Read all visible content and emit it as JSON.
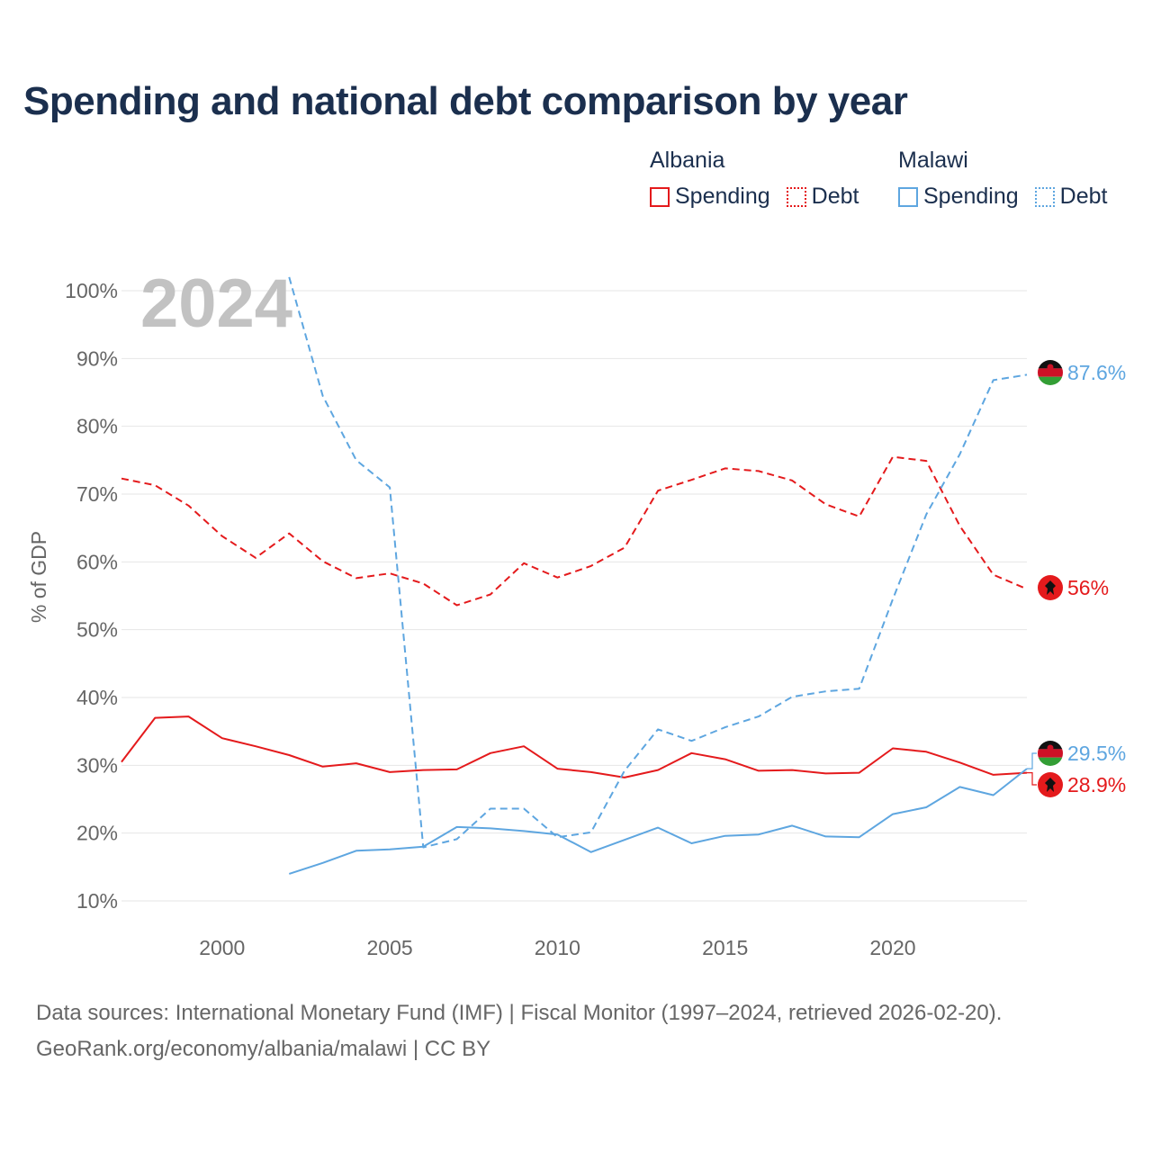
{
  "title": "Spending and national debt comparison by year",
  "legend": {
    "albania": {
      "name": "Albania",
      "spending": "Spending",
      "debt": "Debt"
    },
    "malawi": {
      "name": "Malawi",
      "spending": "Spending",
      "debt": "Debt"
    }
  },
  "colors": {
    "albania": "#e41a1c",
    "malawi": "#5ea6e0",
    "grid": "#e6e6e6",
    "axis_text": "#666666",
    "title": "#1b2f4e",
    "watermark": "#c2c2c2"
  },
  "source": {
    "line1": "Data sources: International Monetary Fund (IMF) | Fiscal Monitor (1997–2024, retrieved 2026-02-20).",
    "line2": "GeoRank.org/economy/albania/malawi | CC BY"
  },
  "chart_data": {
    "type": "line",
    "title": "Spending and national debt comparison by year",
    "watermark_year": "2024",
    "ylabel": "% of GDP",
    "xlabel": "",
    "xlim": [
      1997,
      2024
    ],
    "ylim": [
      10,
      100
    ],
    "yticks": [
      10,
      20,
      30,
      40,
      50,
      60,
      70,
      80,
      90,
      100
    ],
    "ytick_labels": [
      "10%",
      "20%",
      "30%",
      "40%",
      "50%",
      "60%",
      "70%",
      "80%",
      "90%",
      "100%"
    ],
    "xticks": [
      2000,
      2005,
      2010,
      2015,
      2020
    ],
    "xtick_labels": [
      "2000",
      "2005",
      "2010",
      "2015",
      "2020"
    ],
    "series": [
      {
        "name": "Albania Spending",
        "country": "albania",
        "style": "solid",
        "x": [
          1997,
          1998,
          1999,
          2000,
          2001,
          2002,
          2003,
          2004,
          2005,
          2006,
          2007,
          2008,
          2009,
          2010,
          2011,
          2012,
          2013,
          2014,
          2015,
          2016,
          2017,
          2018,
          2019,
          2020,
          2021,
          2022,
          2023,
          2024
        ],
        "values": [
          30.5,
          37,
          37.2,
          34,
          32.8,
          31.5,
          29.8,
          30.3,
          29,
          29.3,
          29.4,
          31.8,
          32.8,
          29.5,
          29,
          28.2,
          29.3,
          31.8,
          30.9,
          29.2,
          29.3,
          28.8,
          28.9,
          32.5,
          32,
          30.4,
          28.6,
          28.9
        ],
        "end_label": "28.9%"
      },
      {
        "name": "Albania Debt",
        "country": "albania",
        "style": "dashed",
        "x": [
          1997,
          1998,
          1999,
          2000,
          2001,
          2002,
          2003,
          2004,
          2005,
          2006,
          2007,
          2008,
          2009,
          2010,
          2011,
          2012,
          2013,
          2014,
          2015,
          2016,
          2017,
          2018,
          2019,
          2020,
          2021,
          2022,
          2023,
          2024
        ],
        "values": [
          72.3,
          71.3,
          68.3,
          63.8,
          60.6,
          64.2,
          60.1,
          57.6,
          58.3,
          56.8,
          53.6,
          55.2,
          59.8,
          57.7,
          59.4,
          62.1,
          70.5,
          72.1,
          73.8,
          73.4,
          72,
          68.5,
          66.7,
          75.5,
          74.9,
          65.3,
          58.1,
          56
        ],
        "end_label": "56%"
      },
      {
        "name": "Malawi Spending",
        "country": "malawi",
        "style": "solid",
        "x": [
          2002,
          2003,
          2004,
          2005,
          2006,
          2007,
          2008,
          2009,
          2010,
          2011,
          2012,
          2013,
          2014,
          2015,
          2016,
          2017,
          2018,
          2019,
          2020,
          2021,
          2022,
          2023,
          2024
        ],
        "values": [
          14,
          15.6,
          17.4,
          17.6,
          18,
          20.9,
          20.7,
          20.3,
          19.8,
          17.2,
          19,
          20.8,
          18.5,
          19.6,
          19.8,
          21.1,
          19.5,
          19.4,
          22.8,
          23.8,
          26.8,
          25.6,
          29.5
        ],
        "end_label": "29.5%"
      },
      {
        "name": "Malawi Debt",
        "country": "malawi",
        "style": "dashed",
        "x": [
          2002,
          2003,
          2004,
          2005,
          2006,
          2007,
          2008,
          2009,
          2010,
          2011,
          2012,
          2013,
          2014,
          2015,
          2016,
          2017,
          2018,
          2019,
          2020,
          2021,
          2022,
          2023,
          2024
        ],
        "values": [
          102,
          84.5,
          75,
          71,
          17.9,
          19.1,
          23.6,
          23.6,
          19.4,
          20.1,
          29.2,
          35.3,
          33.6,
          35.6,
          37.2,
          40.1,
          40.9,
          41.3,
          54.5,
          67,
          75.9,
          86.8,
          87.6
        ],
        "end_label": "87.6%"
      }
    ]
  }
}
